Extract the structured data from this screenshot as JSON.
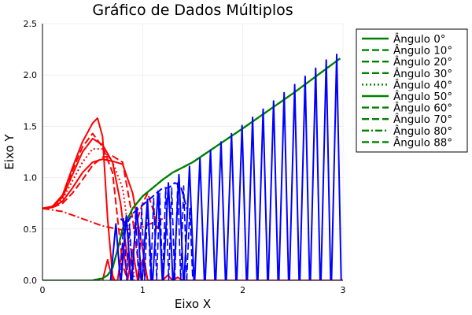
{
  "chart_data": {
    "type": "line",
    "title": "Gráfico de Dados Múltiplos",
    "xlabel": "Eixo X",
    "ylabel": "Eixo Y",
    "xlim": [
      0,
      3
    ],
    "ylim": [
      0,
      2.5
    ],
    "xticks": [
      0,
      1,
      2,
      3
    ],
    "yticks": [
      0.0,
      0.5,
      1.0,
      1.5,
      2.0,
      2.5
    ],
    "xtick_labels": [
      "0",
      "1",
      "2",
      "3"
    ],
    "ytick_labels": [
      "0.0",
      "0.5",
      "1.0",
      "1.5",
      "2.0",
      "2.5"
    ],
    "grid": true,
    "legend_position": "outside-right",
    "colors": {
      "legend_series": "#008000",
      "red_curves": "#ff0000",
      "blue_curves": "#0000ff"
    },
    "legend": [
      {
        "name": "Ângulo 0°",
        "dash": "solid"
      },
      {
        "name": "Ângulo 10°",
        "dash": "dash"
      },
      {
        "name": "Ângulo 20°",
        "dash": "dash"
      },
      {
        "name": "Ângulo 30°",
        "dash": "dash"
      },
      {
        "name": "Ângulo 40°",
        "dash": "dot"
      },
      {
        "name": "Ângulo 50°",
        "dash": "solid"
      },
      {
        "name": "Ângulo 60°",
        "dash": "dash"
      },
      {
        "name": "Ângulo 70°",
        "dash": "dash"
      },
      {
        "name": "Ângulo 80°",
        "dash": "dashdot"
      },
      {
        "name": "Ângulo 88°",
        "dash": "dash"
      }
    ],
    "green_series": {
      "x": [
        0,
        0.5,
        0.6,
        0.65,
        0.7,
        0.75,
        0.8,
        0.9,
        1.0,
        1.1,
        1.2,
        1.3,
        1.4,
        1.5,
        2.0,
        2.5,
        2.97
      ],
      "y": [
        0,
        0,
        0.02,
        0.05,
        0.12,
        0.3,
        0.5,
        0.7,
        0.82,
        0.9,
        0.98,
        1.05,
        1.1,
        1.15,
        1.48,
        1.82,
        2.16
      ]
    },
    "red_curves": [
      {
        "dash": "solid",
        "x": [
          0,
          0.1,
          0.2,
          0.3,
          0.4,
          0.5,
          0.55,
          0.6,
          0.65,
          0.7,
          0.72
        ],
        "y": [
          0.7,
          0.72,
          0.83,
          1.1,
          1.35,
          1.53,
          1.58,
          1.4,
          0.6,
          0.05,
          0
        ]
      },
      {
        "dash": "dash",
        "x": [
          0,
          0.1,
          0.2,
          0.3,
          0.4,
          0.5,
          0.6,
          0.7,
          0.75,
          0.8,
          0.85
        ],
        "y": [
          0.7,
          0.72,
          0.82,
          1.07,
          1.3,
          1.43,
          1.3,
          1.05,
          0.6,
          0.15,
          0
        ]
      },
      {
        "dash": "solid",
        "x": [
          0,
          0.1,
          0.2,
          0.3,
          0.4,
          0.5,
          0.6,
          0.7,
          0.78,
          0.85,
          0.9
        ],
        "y": [
          0.7,
          0.72,
          0.81,
          1.03,
          1.25,
          1.38,
          1.32,
          1.15,
          0.75,
          0.2,
          0
        ]
      },
      {
        "dash": "dot",
        "x": [
          0,
          0.1,
          0.2,
          0.3,
          0.4,
          0.5,
          0.6,
          0.7,
          0.8,
          0.87,
          0.92
        ],
        "y": [
          0.7,
          0.71,
          0.79,
          0.97,
          1.15,
          1.28,
          1.28,
          1.15,
          0.9,
          0.4,
          0
        ]
      },
      {
        "dash": "solid",
        "x": [
          0,
          0.1,
          0.2,
          0.3,
          0.4,
          0.5,
          0.6,
          0.7,
          0.8,
          0.9,
          1.0,
          1.05
        ],
        "y": [
          0.7,
          0.71,
          0.77,
          0.9,
          1.05,
          1.15,
          1.18,
          1.16,
          1.13,
          0.85,
          0.3,
          0
        ]
      },
      {
        "dash": "dash",
        "x": [
          0,
          0.1,
          0.2,
          0.3,
          0.4,
          0.5,
          0.6,
          0.7,
          0.8,
          0.9,
          0.98
        ],
        "y": [
          0.7,
          0.71,
          0.75,
          0.85,
          0.98,
          1.12,
          1.2,
          1.21,
          1.15,
          0.6,
          0
        ]
      },
      {
        "dash": "dashdot",
        "x": [
          0,
          0.2,
          0.4,
          0.6,
          0.8,
          1.0,
          1.2
        ],
        "y": [
          0.7,
          0.67,
          0.6,
          0.53,
          0.49,
          0.52,
          0.6
        ]
      },
      {
        "dash": "dash",
        "x": [
          0.95,
          1.0,
          1.05,
          1.1,
          1.15
        ],
        "y": [
          0.6,
          0.75,
          0.85,
          0.7,
          0.5
        ]
      },
      {
        "dash": "solid",
        "x": [
          0.6,
          0.65,
          0.7,
          0.75,
          0.8,
          0.85,
          0.9,
          0.95,
          1.0,
          1.05,
          1.1,
          1.2,
          1.25,
          1.3,
          1.35,
          1.4,
          1.5,
          1.6,
          2.0,
          2.5,
          3.0
        ],
        "y": [
          0,
          0.2,
          0,
          0,
          0.35,
          0,
          0.3,
          0,
          0.2,
          0,
          0,
          0,
          0.05,
          0,
          0.03,
          0,
          0,
          0,
          0,
          0,
          0
        ]
      }
    ],
    "blue_teeth": {
      "x_start": 0.68,
      "x_end": 2.95,
      "period": 0.105,
      "envelope_y_start": 0.4,
      "envelope_slope": 0.76,
      "inner_x": [
        0.78,
        0.84,
        0.9,
        0.96,
        1.02,
        1.08,
        1.14,
        1.2,
        1.26,
        1.32,
        1.38,
        1.44
      ],
      "inner_y": [
        0.6,
        0.55,
        0.65,
        0.7,
        0.75,
        0.8,
        0.85,
        0.9,
        0.9,
        0.95,
        0.92,
        0.7
      ]
    }
  }
}
